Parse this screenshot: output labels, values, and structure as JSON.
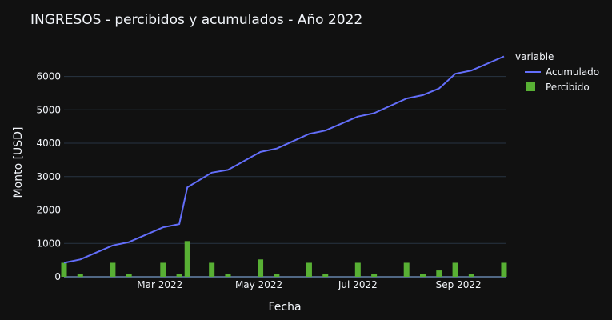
{
  "chart_data": {
    "type": "bar+line",
    "title": "INGRESOS - percibidos y acumulados - Año 2022",
    "xlabel": "Fecha",
    "ylabel": "Monto [USD]",
    "ylim": [
      0,
      6900
    ],
    "xlim": [
      "2022-01-01",
      "2022-09-30"
    ],
    "y_ticks": [
      0,
      1000,
      2000,
      3000,
      4000,
      5000,
      6000
    ],
    "x_ticks": [
      {
        "date": "2022-03-01",
        "label": "Mar 2022"
      },
      {
        "date": "2022-05-01",
        "label": "May 2022"
      },
      {
        "date": "2022-07-01",
        "label": "Jul 2022"
      },
      {
        "date": "2022-09-01",
        "label": "Sep 2022"
      }
    ],
    "legend": {
      "title": "variable",
      "position": "right"
    },
    "series": [
      {
        "name": "Acumulado",
        "kind": "line",
        "color": "#636efa",
        "x": [
          "2022-01-01",
          "2022-01-11",
          "2022-01-31",
          "2022-02-10",
          "2022-03-03",
          "2022-03-13",
          "2022-03-18",
          "2022-04-02",
          "2022-04-12",
          "2022-05-02",
          "2022-05-12",
          "2022-06-01",
          "2022-06-11",
          "2022-07-01",
          "2022-07-11",
          "2022-07-31",
          "2022-08-10",
          "2022-08-20",
          "2022-08-30",
          "2022-09-09",
          "2022-09-29"
        ],
        "values": [
          420,
          520,
          940,
          1040,
          1480,
          1580,
          2680,
          3120,
          3200,
          3740,
          3840,
          4280,
          4380,
          4800,
          4900,
          5340,
          5440,
          5640,
          6080,
          6180,
          6600
        ]
      },
      {
        "name": "Percibido",
        "kind": "bar",
        "color": "#58b034",
        "x": [
          "2022-01-01",
          "2022-01-11",
          "2022-01-31",
          "2022-02-10",
          "2022-03-03",
          "2022-03-13",
          "2022-03-18",
          "2022-04-02",
          "2022-04-12",
          "2022-05-02",
          "2022-05-12",
          "2022-06-01",
          "2022-06-11",
          "2022-07-01",
          "2022-07-11",
          "2022-07-31",
          "2022-08-10",
          "2022-08-20",
          "2022-08-30",
          "2022-09-09",
          "2022-09-29"
        ],
        "values": [
          420,
          80,
          420,
          80,
          420,
          80,
          1070,
          420,
          80,
          520,
          80,
          420,
          80,
          420,
          80,
          420,
          80,
          190,
          420,
          80,
          420
        ]
      }
    ],
    "style": {
      "background": "#111111",
      "grid_color": "#283442",
      "zero_line_color": "#506784",
      "text_color": "#f2f5fa"
    },
    "grid": true
  }
}
